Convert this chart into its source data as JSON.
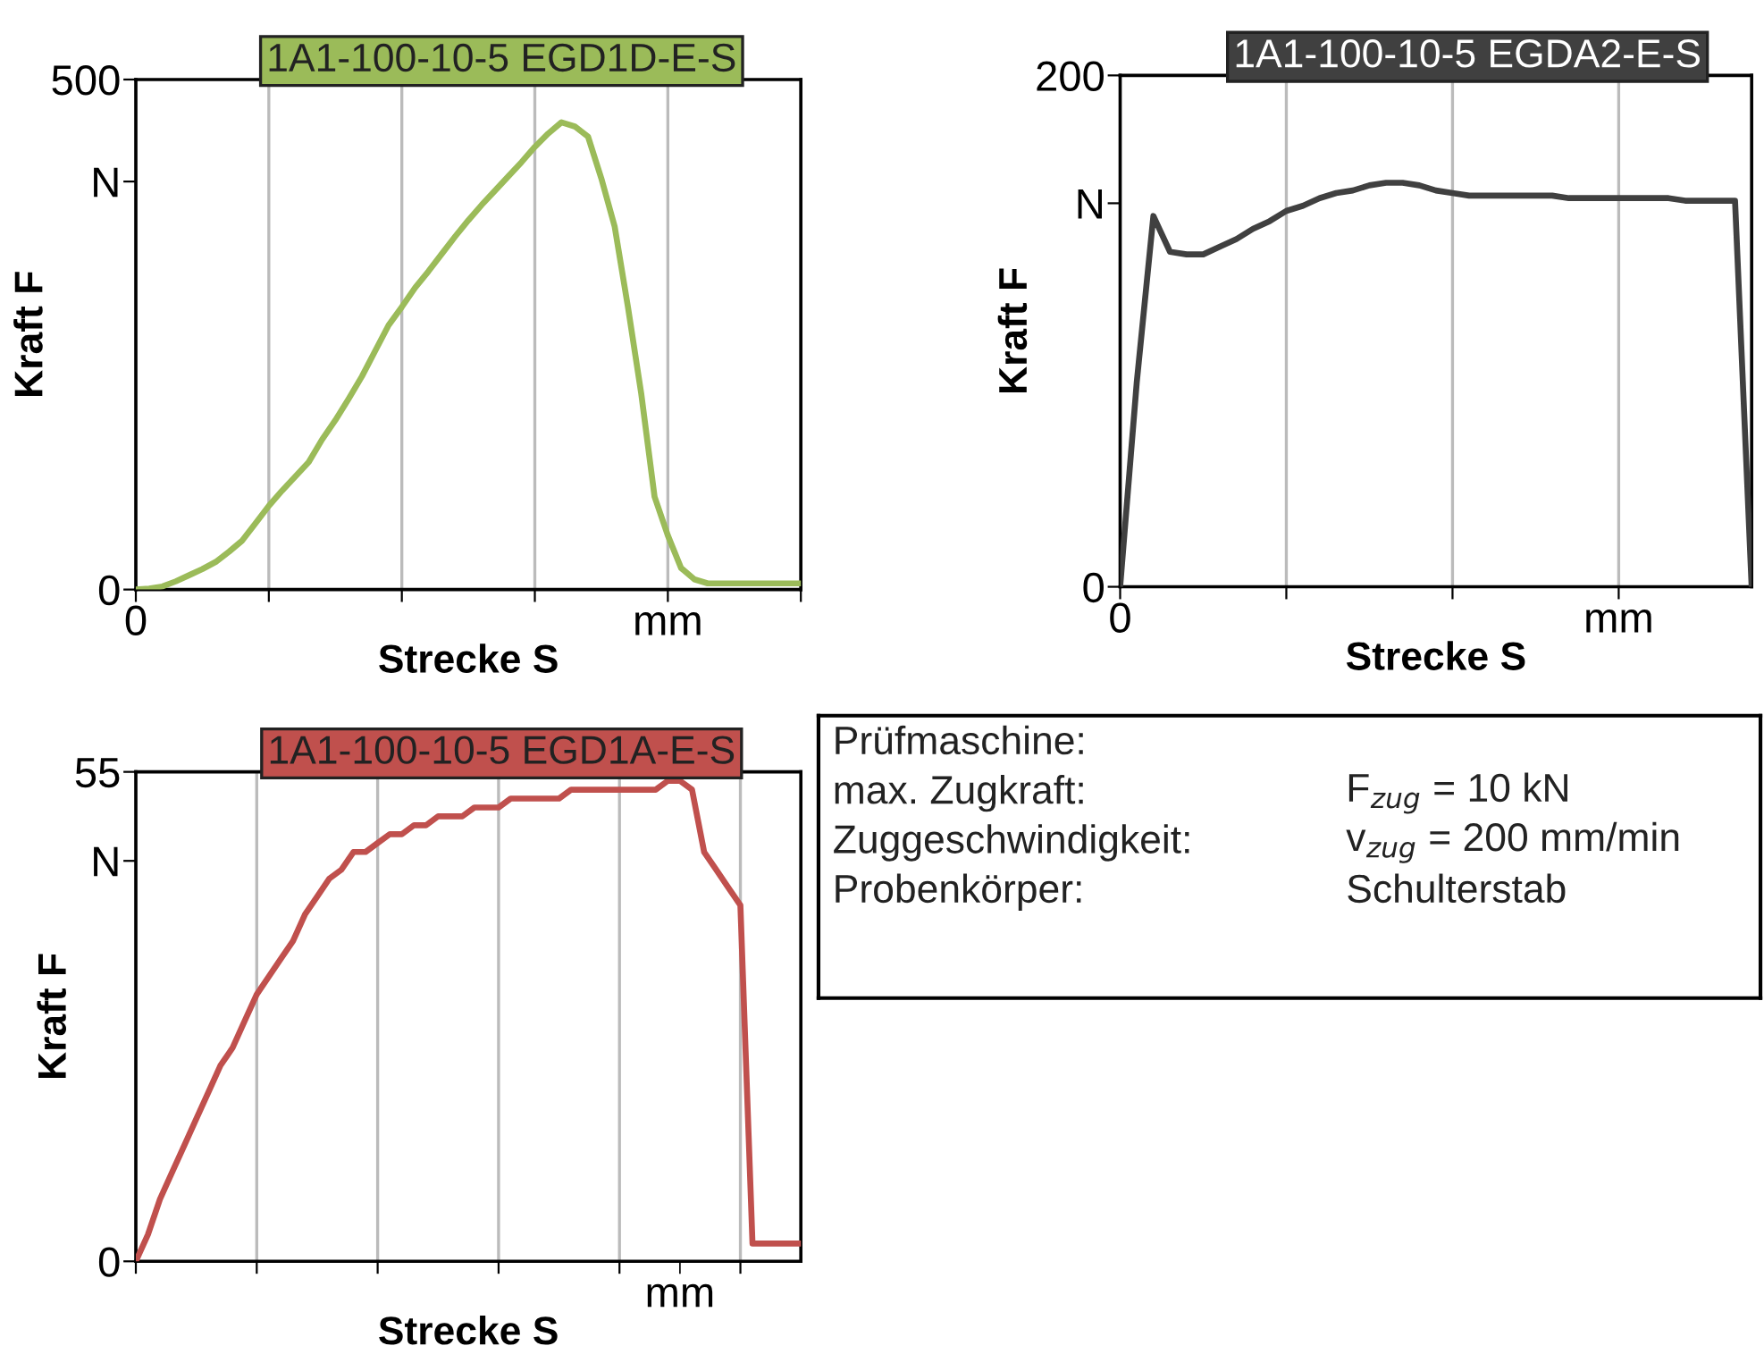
{
  "chart_data": [
    {
      "type": "line",
      "title": "1A1-100-10-5 EGD1D-E-S",
      "xlabel": "Strecke S",
      "ylabel": "Kraft F",
      "categories": [
        "0",
        null,
        null,
        null,
        null,
        null,
        null,
        null,
        null,
        null,
        null,
        null,
        null,
        null,
        null,
        null,
        null,
        null,
        null,
        null,
        null,
        null,
        null,
        null,
        null,
        null,
        null,
        null,
        null,
        null,
        null,
        null,
        null,
        null,
        null,
        null,
        null,
        null,
        null,
        null,
        "mm",
        null,
        null,
        null,
        null,
        null,
        null,
        null,
        null,
        null,
        null
      ],
      "series": [
        {
          "color": "#9bbb59",
          "values": [
            0,
            1,
            3,
            8,
            14,
            20,
            27,
            37,
            48,
            65,
            82,
            97,
            111,
            125,
            147,
            166,
            187,
            209,
            234,
            259,
            277,
            296,
            312,
            329,
            346,
            362,
            377,
            391,
            405,
            419,
            434,
            447,
            458,
            454,
            444,
            403,
            356,
            277,
            192,
            91,
            53,
            21,
            10,
            6,
            6,
            6,
            6,
            6,
            6,
            6,
            6
          ]
        }
      ],
      "ylim": [
        0,
        500
      ],
      "yticks": [
        0,
        {
          "value": 400,
          "label": "N"
        },
        500
      ],
      "grid": "x"
    },
    {
      "type": "line",
      "title": "1A1-100-10-5 EGDA2-E-S",
      "xlabel": "Strecke S",
      "ylabel": "Kraft F",
      "categories": [
        "0",
        null,
        null,
        null,
        null,
        null,
        null,
        null,
        null,
        null,
        null,
        null,
        null,
        null,
        null,
        null,
        null,
        null,
        null,
        null,
        null,
        null,
        null,
        null,
        null,
        null,
        null,
        null,
        null,
        null,
        "mm",
        null,
        null,
        null,
        null,
        null,
        null,
        null,
        null
      ],
      "series": [
        {
          "color": "#404040",
          "values": [
            0,
            80,
            145,
            131,
            130,
            130,
            133,
            136,
            140,
            143,
            147,
            149,
            152,
            154,
            155,
            157,
            158,
            158,
            157,
            155,
            154,
            153,
            153,
            153,
            153,
            153,
            153,
            152,
            152,
            152,
            152,
            152,
            152,
            152,
            151,
            151,
            151,
            151,
            0
          ]
        }
      ],
      "ylim": [
        0,
        200
      ],
      "yticks": [
        0,
        {
          "value": 150,
          "label": "N"
        },
        200
      ],
      "grid": "x"
    },
    {
      "type": "line",
      "title": "1A1-100-10-5 EGD1A-E-S",
      "xlabel": "Strecke S",
      "ylabel": "Kraft F",
      "categories": [
        null,
        null,
        null,
        null,
        null,
        null,
        null,
        null,
        null,
        null,
        null,
        null,
        null,
        null,
        null,
        null,
        null,
        null,
        null,
        null,
        null,
        null,
        null,
        null,
        null,
        null,
        null,
        null,
        null,
        null,
        null,
        null,
        null,
        null,
        null,
        null,
        null,
        null,
        null,
        null,
        null,
        null,
        null,
        null,
        null,
        "mm",
        null,
        null,
        null,
        null,
        null,
        null,
        null,
        null,
        null,
        null
      ],
      "series": [
        {
          "color": "#c0504d",
          "values": [
            0,
            3,
            7,
            10,
            13,
            16,
            19,
            22,
            24,
            27,
            30,
            32,
            34,
            36,
            39,
            41,
            43,
            44,
            46,
            46,
            47,
            48,
            48,
            49,
            49,
            50,
            50,
            50,
            51,
            51,
            51,
            52,
            52,
            52,
            52,
            52,
            53,
            53,
            53,
            53,
            53,
            53,
            53,
            53,
            54,
            54,
            53,
            46,
            44,
            42,
            40,
            2,
            2,
            2,
            2,
            2
          ]
        }
      ],
      "ylim": [
        0,
        55
      ],
      "yticks": [
        0,
        {
          "value": 45,
          "label": "N"
        },
        55
      ],
      "grid": "x"
    },
    {
      "type": "other",
      "annotations": [
        "Prüfmaschine:",
        "max. Zugkraft:\tF$_{zug}$ = 10 kN",
        "Zuggeschwindigkeit:\tv$_{zug}$ = 200 mm/min",
        "Probenkörper:\tSchulterstab"
      ]
    }
  ]
}
